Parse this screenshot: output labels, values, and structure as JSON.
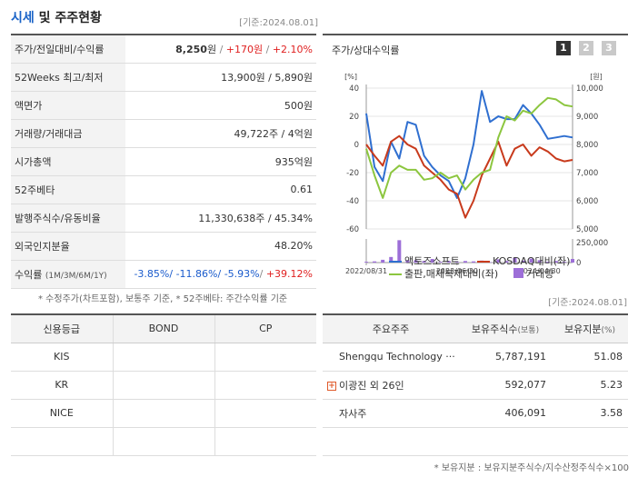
{
  "header": {
    "title_accent": "시세",
    "title_rest": " 및 주주현황",
    "base_date": "[기준:2024.08.01]"
  },
  "quote_rows": {
    "price": {
      "label": "주가/전일대비/수익률",
      "price": "8,250",
      "unit": "원",
      "change": "+170원",
      "pct": "+2.10%"
    },
    "weeks52": {
      "label": "52Weeks 최고/최저",
      "value": "13,900원 / 5,890원"
    },
    "par": {
      "label": "액면가",
      "value": "500원"
    },
    "volume": {
      "label": "거래량/거래대금",
      "value": "49,722주 / 4억원"
    },
    "mcap": {
      "label": "시가총액",
      "value": "935억원"
    },
    "beta": {
      "label": "52주베타",
      "value": "0.61"
    },
    "shares": {
      "label": "발행주식수/유동비율",
      "value": "11,330,638주 / 45.34%"
    },
    "foreign": {
      "label": "외국인지분율",
      "value": "48.20%"
    },
    "returns": {
      "label": "수익률",
      "label_sub": "(1M/3M/6M/1Y)",
      "r1": "-3.85%",
      "r2": "-11.86%",
      "r3": "-5.93%",
      "r4": "+39.12%"
    }
  },
  "note_top": "* 수정주가(차트포함), 보통주 기준, * 52주베타: 주간수익률 기준",
  "chart_panel": {
    "title": "주가/상대수익률",
    "pages": [
      "1",
      "2",
      "3"
    ],
    "left_unit": "[%]",
    "right_unit": "[원]",
    "left_ticks": [
      "40",
      "20",
      "0",
      "-20",
      "-40",
      "-60"
    ],
    "right_ticks": [
      "10,000",
      "9,000",
      "8,000",
      "7,000",
      "6,000",
      "5,000"
    ],
    "volume_ticks": [
      "250,000",
      "0"
    ],
    "x_ticks": [
      "2022/08/31",
      "2023/06/30",
      "2024/04/30"
    ],
    "legend": {
      "s1": "액토즈소프트",
      "s2": "KOSDAQ대비(좌)",
      "s3": "출판,매체복제대비(좌)",
      "s4": "거래량"
    },
    "colors": {
      "s1": "#2f6fd0",
      "s2": "#c83a1c",
      "s3": "#8cc63f",
      "s4": "#9d6fd8"
    }
  },
  "chart_data": {
    "type": "line",
    "x": [
      "2022/08/31",
      "",
      "",
      "",
      "",
      "",
      "",
      "",
      "",
      "",
      "",
      "2023/06/30",
      "",
      "",
      "",
      "",
      "",
      "",
      "",
      "",
      "",
      "2024/04/30",
      "",
      "",
      "",
      ""
    ],
    "series": [
      {
        "name": "액토즈소프트",
        "axis": "right",
        "values": [
          9100,
          7200,
          6700,
          8100,
          7500,
          8800,
          8700,
          7600,
          7200,
          6900,
          6700,
          6100,
          6800,
          8000,
          9900,
          8800,
          9000,
          8900,
          8900,
          9400,
          9100,
          8700,
          8200,
          8250,
          8300,
          8250
        ]
      },
      {
        "name": "KOSDAQ대비(좌)",
        "axis": "left",
        "values": [
          0,
          -8,
          -15,
          2,
          6,
          0,
          -3,
          -15,
          -20,
          -25,
          -32,
          -35,
          -52,
          -40,
          -22,
          -10,
          2,
          -15,
          -3,
          0,
          -8,
          -2,
          -5,
          -10,
          -12,
          -11
        ]
      },
      {
        "name": "출판,매체복제대비(좌)",
        "axis": "left",
        "values": [
          -3,
          -22,
          -38,
          -20,
          -15,
          -18,
          -18,
          -25,
          -24,
          -20,
          -24,
          -22,
          -32,
          -25,
          -20,
          -18,
          5,
          20,
          17,
          24,
          22,
          28,
          33,
          32,
          28,
          27
        ]
      },
      {
        "name": "거래량",
        "axis": "volume",
        "values": [
          10000,
          15000,
          35000,
          70000,
          280000,
          30000,
          30000,
          20000,
          45000,
          10000,
          20000,
          10000,
          20000,
          15000,
          25000,
          5000,
          40000,
          20000,
          60000,
          25000,
          50000,
          30000,
          10000,
          20000,
          10000,
          45000
        ]
      }
    ],
    "ylim_left": [
      -60,
      40
    ],
    "ylim_right": [
      5000,
      10000
    ],
    "ylim_volume": [
      0,
      250000
    ]
  },
  "credit": {
    "headers": [
      "신용등급",
      "BOND",
      "CP"
    ],
    "rows": [
      {
        "agency": "KIS",
        "bond": "",
        "cp": ""
      },
      {
        "agency": "KR",
        "bond": "",
        "cp": ""
      },
      {
        "agency": "NICE",
        "bond": "",
        "cp": ""
      },
      {
        "agency": "",
        "bond": "",
        "cp": ""
      }
    ]
  },
  "holders": {
    "headers": {
      "name": "주요주주",
      "shares": "보유주식수",
      "shares_sub": "(보통)",
      "ratio": "보유지분",
      "ratio_sub": "(%)"
    },
    "rows": [
      {
        "name": "Shengqu Technology ···",
        "shares": "5,787,191",
        "ratio": "51.08",
        "expand": false
      },
      {
        "name": "이광진 외 26인",
        "shares": "592,077",
        "ratio": "5.23",
        "expand": true
      },
      {
        "name": "자사주",
        "shares": "406,091",
        "ratio": "3.58",
        "expand": false
      },
      {
        "name": "",
        "shares": "",
        "ratio": "",
        "expand": false
      }
    ]
  },
  "note_bottom": "* 보유지분 : 보유지분주식수/지수산정주식수×100"
}
